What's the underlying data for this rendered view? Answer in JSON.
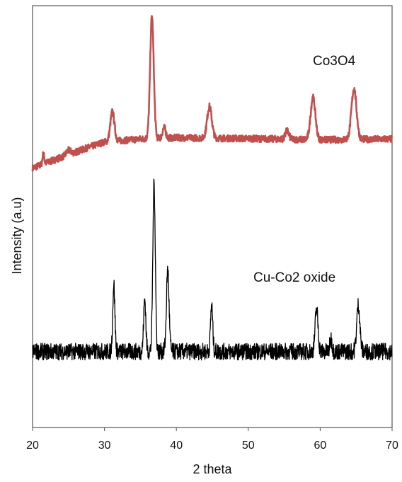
{
  "chart_data": {
    "type": "line",
    "title": "",
    "xlabel": "2 theta",
    "ylabel": "Intensity (a.u)",
    "xlim": [
      20,
      70
    ],
    "ylim": [
      0,
      100
    ],
    "x_ticks": [
      "20",
      "30",
      "40",
      "50",
      "60",
      "70"
    ],
    "y_ticks_shown": false,
    "grid": false,
    "legend": "none",
    "series": [
      {
        "name": "Co3O4",
        "color": "#c0504d",
        "label_position": "top-right",
        "baseline_points": [
          [
            20,
            61.5
          ],
          [
            25,
            64.7
          ],
          [
            30,
            67.7
          ],
          [
            35,
            68.4
          ],
          [
            40,
            68.7
          ],
          [
            50,
            68.5
          ],
          [
            60,
            68.2
          ],
          [
            70,
            68.4
          ]
        ],
        "noise": 0.8,
        "peaks": [
          {
            "x": 21.5,
            "height": 2.5,
            "width": 0.12
          },
          {
            "x": 25.0,
            "height": 1.0,
            "width": 0.3
          },
          {
            "x": 31.1,
            "height": 7.0,
            "width": 0.28
          },
          {
            "x": 36.6,
            "height": 29.0,
            "width": 0.25
          },
          {
            "x": 38.3,
            "height": 2.5,
            "width": 0.22
          },
          {
            "x": 44.6,
            "height": 7.5,
            "width": 0.32
          },
          {
            "x": 55.4,
            "height": 2.0,
            "width": 0.25
          },
          {
            "x": 59.0,
            "height": 10.0,
            "width": 0.33
          },
          {
            "x": 64.7,
            "height": 12.0,
            "width": 0.35
          }
        ]
      },
      {
        "name": "Cu-Co2 oxide",
        "color": "#000000",
        "label_position": "middle-right",
        "baseline_points": [
          [
            20,
            18
          ],
          [
            70,
            18
          ]
        ],
        "noise": 2.0,
        "peaks": [
          {
            "x": 31.3,
            "height": 16.0,
            "width": 0.15
          },
          {
            "x": 35.6,
            "height": 12.5,
            "width": 0.15
          },
          {
            "x": 36.9,
            "height": 40.0,
            "width": 0.17
          },
          {
            "x": 38.8,
            "height": 19.5,
            "width": 0.18
          },
          {
            "x": 44.9,
            "height": 11.0,
            "width": 0.15
          },
          {
            "x": 59.5,
            "height": 10.0,
            "width": 0.2
          },
          {
            "x": 61.5,
            "height": 3.0,
            "width": 0.15
          },
          {
            "x": 65.3,
            "height": 11.0,
            "width": 0.22
          }
        ]
      }
    ]
  }
}
